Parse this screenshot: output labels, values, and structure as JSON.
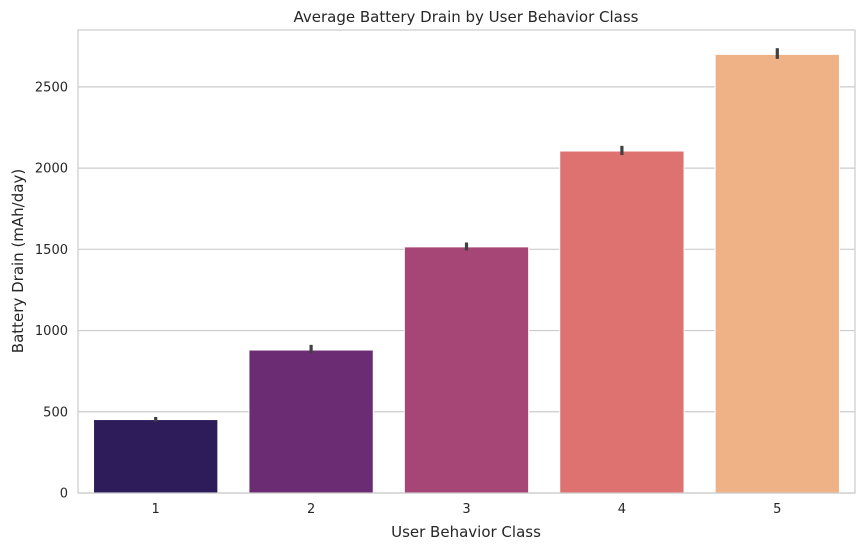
{
  "chart_data": {
    "type": "bar",
    "title": "Average Battery Drain by User Behavior Class",
    "xlabel": "User Behavior Class",
    "ylabel": "Battery Drain (mAh/day)",
    "categories": [
      "1",
      "2",
      "3",
      "4",
      "5"
    ],
    "values": [
      452,
      880,
      1515,
      2105,
      2700
    ],
    "error_bars": [
      [
        438,
        468
      ],
      [
        860,
        912
      ],
      [
        1493,
        1542
      ],
      [
        2080,
        2137
      ],
      [
        2672,
        2738
      ]
    ],
    "ylim": [
      0,
      2850
    ],
    "yticks": [
      0,
      500,
      1000,
      1500,
      2000,
      2500
    ],
    "grid": "y-only",
    "colors": [
      "#2d1b5a",
      "#6b2c73",
      "#a54677",
      "#de7270",
      "#efb287"
    ],
    "error_bar_color": "#404040"
  }
}
